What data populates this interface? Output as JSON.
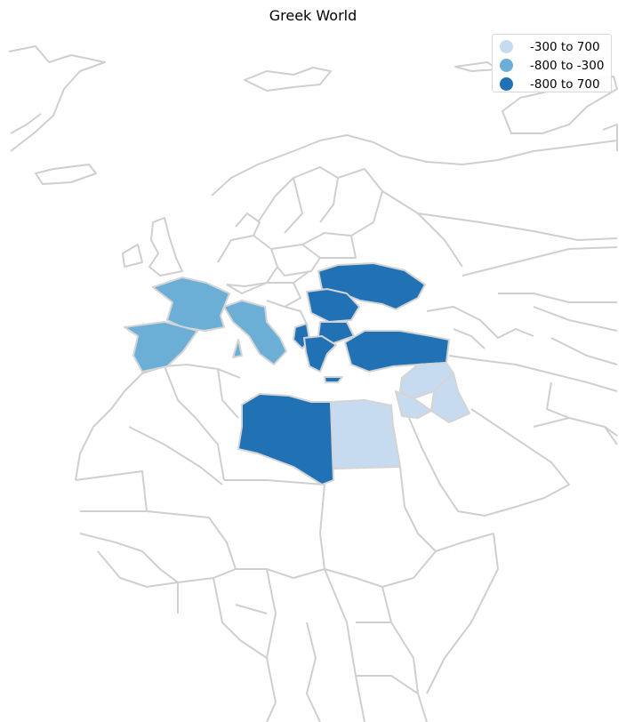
{
  "title": "Greek World",
  "legend": [
    {
      "label": "-300 to 700",
      "color": "#c6dbef"
    },
    {
      "label": "-800 to -300",
      "color": "#6baed6"
    },
    {
      "label": "-800 to 700",
      "color": "#2171b5"
    }
  ],
  "colors": {
    "border": "#cfcfcf",
    "background": "#ffffff"
  },
  "regions": [
    {
      "name": "France",
      "category": "-800 to -300"
    },
    {
      "name": "Spain",
      "category": "-800 to -300"
    },
    {
      "name": "Italy",
      "category": "-800 to -300"
    },
    {
      "name": "Ukraine",
      "category": "-800 to 700"
    },
    {
      "name": "Romania",
      "category": "-800 to 700"
    },
    {
      "name": "Bulgaria",
      "category": "-800 to 700"
    },
    {
      "name": "Greece",
      "category": "-800 to 700"
    },
    {
      "name": "Albania",
      "category": "-800 to 700"
    },
    {
      "name": "Turkey",
      "category": "-800 to 700"
    },
    {
      "name": "Libya",
      "category": "-800 to 700"
    },
    {
      "name": "Egypt",
      "category": "-300 to 700"
    },
    {
      "name": "Syria",
      "category": "-300 to 700"
    },
    {
      "name": "Iraq",
      "category": "-300 to 700"
    },
    {
      "name": "Jordan",
      "category": "-300 to 700"
    },
    {
      "name": "Lebanon",
      "category": "-300 to 700"
    },
    {
      "name": "Israel",
      "category": "-300 to 700"
    }
  ]
}
